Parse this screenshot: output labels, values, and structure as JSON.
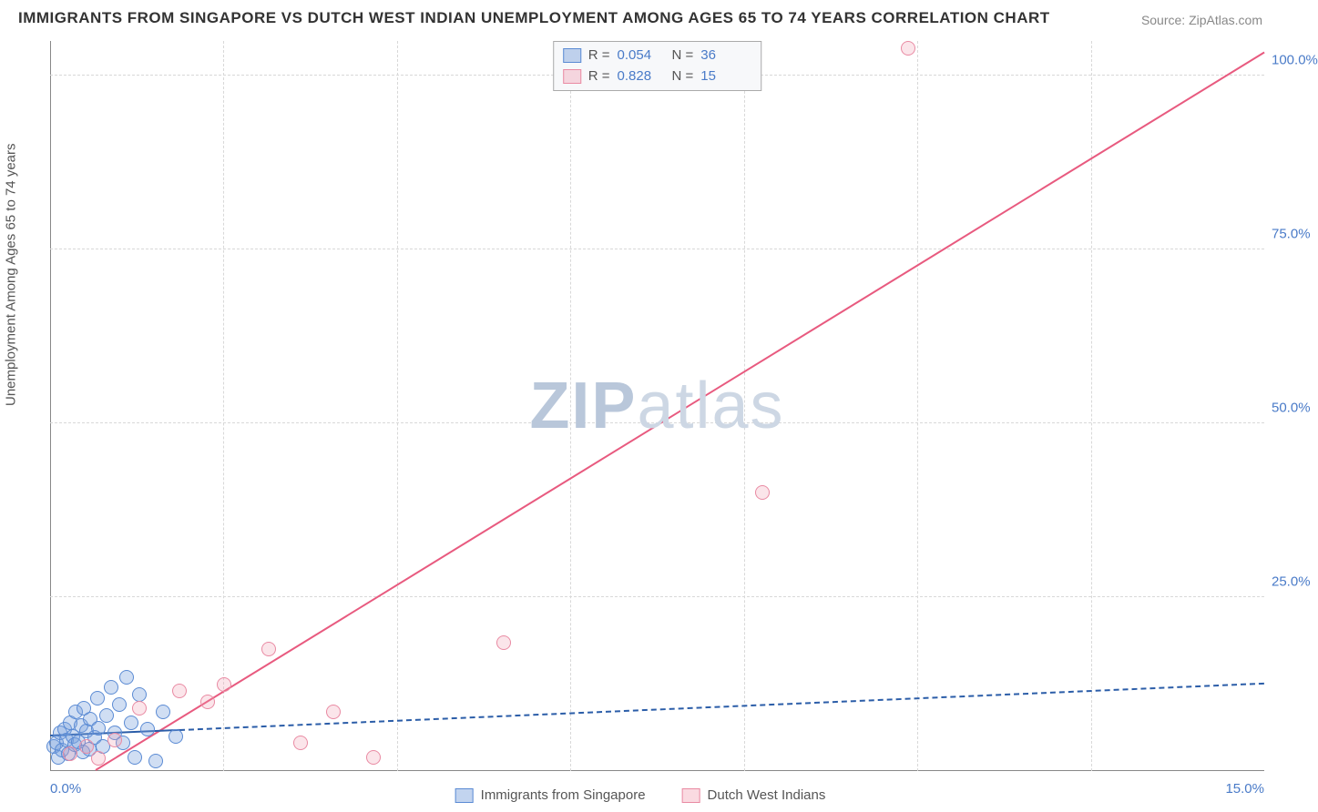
{
  "title": "IMMIGRANTS FROM SINGAPORE VS DUTCH WEST INDIAN UNEMPLOYMENT AMONG AGES 65 TO 74 YEARS CORRELATION CHART",
  "source": "Source: ZipAtlas.com",
  "watermark_a": "ZIP",
  "watermark_b": "atlas",
  "y_axis_title": "Unemployment Among Ages 65 to 74 years",
  "chart": {
    "type": "scatter",
    "background_color": "#ffffff",
    "grid_color": "#d8d8d8",
    "axis_color": "#888888",
    "tick_label_color": "#4a7bc8",
    "tick_fontsize": 15,
    "xlim": [
      0,
      15
    ],
    "ylim": [
      0,
      105
    ],
    "x_tick_labels": {
      "start": "0.0%",
      "end": "15.0%"
    },
    "y_ticks": [
      {
        "v": 25,
        "label": "25.0%"
      },
      {
        "v": 50,
        "label": "50.0%"
      },
      {
        "v": 75,
        "label": "75.0%"
      },
      {
        "v": 100,
        "label": "100.0%"
      }
    ],
    "x_gridlines": [
      2.143,
      4.286,
      6.429,
      8.571,
      10.714,
      12.857
    ],
    "series": [
      {
        "key": "blue",
        "label": "Immigrants from Singapore",
        "color_fill": "rgba(120,160,220,0.35)",
        "color_stroke": "#5b8bd4",
        "marker_size": 16,
        "R": "0.054",
        "N": "36",
        "trend": {
          "slope": 0.5,
          "intercept": 5.0,
          "style": "solid_then_dashed",
          "solid_until_x": 1.6,
          "color": "#2b5da8",
          "width": 2.5
        },
        "points": [
          {
            "x": 0.05,
            "y": 3.5
          },
          {
            "x": 0.08,
            "y": 4.0
          },
          {
            "x": 0.1,
            "y": 2.0
          },
          {
            "x": 0.12,
            "y": 5.5
          },
          {
            "x": 0.15,
            "y": 3.0
          },
          {
            "x": 0.18,
            "y": 6.0
          },
          {
            "x": 0.2,
            "y": 4.5
          },
          {
            "x": 0.22,
            "y": 2.5
          },
          {
            "x": 0.25,
            "y": 7.0
          },
          {
            "x": 0.28,
            "y": 5.0
          },
          {
            "x": 0.3,
            "y": 3.8
          },
          {
            "x": 0.32,
            "y": 8.5
          },
          {
            "x": 0.35,
            "y": 4.2
          },
          {
            "x": 0.38,
            "y": 6.5
          },
          {
            "x": 0.4,
            "y": 2.8
          },
          {
            "x": 0.42,
            "y": 9.0
          },
          {
            "x": 0.45,
            "y": 5.8
          },
          {
            "x": 0.48,
            "y": 3.2
          },
          {
            "x": 0.5,
            "y": 7.5
          },
          {
            "x": 0.55,
            "y": 4.8
          },
          {
            "x": 0.58,
            "y": 10.5
          },
          {
            "x": 0.6,
            "y": 6.2
          },
          {
            "x": 0.65,
            "y": 3.5
          },
          {
            "x": 0.7,
            "y": 8.0
          },
          {
            "x": 0.75,
            "y": 12.0
          },
          {
            "x": 0.8,
            "y": 5.5
          },
          {
            "x": 0.85,
            "y": 9.5
          },
          {
            "x": 0.9,
            "y": 4.0
          },
          {
            "x": 0.95,
            "y": 13.5
          },
          {
            "x": 1.0,
            "y": 7.0
          },
          {
            "x": 1.05,
            "y": 2.0
          },
          {
            "x": 1.1,
            "y": 11.0
          },
          {
            "x": 1.2,
            "y": 6.0
          },
          {
            "x": 1.3,
            "y": 1.5
          },
          {
            "x": 1.4,
            "y": 8.5
          },
          {
            "x": 1.55,
            "y": 5.0
          }
        ]
      },
      {
        "key": "pink",
        "label": "Dutch West Indians",
        "color_fill": "rgba(240,150,170,0.25)",
        "color_stroke": "#e98aa3",
        "marker_size": 16,
        "R": "0.828",
        "N": "15",
        "trend": {
          "slope": 7.15,
          "intercept": -4.0,
          "style": "solid",
          "color": "#e85a7f",
          "width": 2.5
        },
        "points": [
          {
            "x": 0.25,
            "y": 2.5
          },
          {
            "x": 0.45,
            "y": 3.5
          },
          {
            "x": 0.6,
            "y": 1.8
          },
          {
            "x": 0.8,
            "y": 4.5
          },
          {
            "x": 1.1,
            "y": 9.0
          },
          {
            "x": 1.6,
            "y": 11.5
          },
          {
            "x": 1.95,
            "y": 10.0
          },
          {
            "x": 2.15,
            "y": 12.5
          },
          {
            "x": 2.7,
            "y": 17.5
          },
          {
            "x": 3.1,
            "y": 4.0
          },
          {
            "x": 3.5,
            "y": 8.5
          },
          {
            "x": 4.0,
            "y": 2.0
          },
          {
            "x": 5.6,
            "y": 18.5
          },
          {
            "x": 8.8,
            "y": 40.0
          },
          {
            "x": 10.6,
            "y": 104.0
          }
        ]
      }
    ]
  },
  "legend_box": {
    "r_label": "R =",
    "n_label": "N ="
  },
  "bottom_legend": [
    {
      "swatch": "blue",
      "label": "Immigrants from Singapore"
    },
    {
      "swatch": "pink",
      "label": "Dutch West Indians"
    }
  ]
}
